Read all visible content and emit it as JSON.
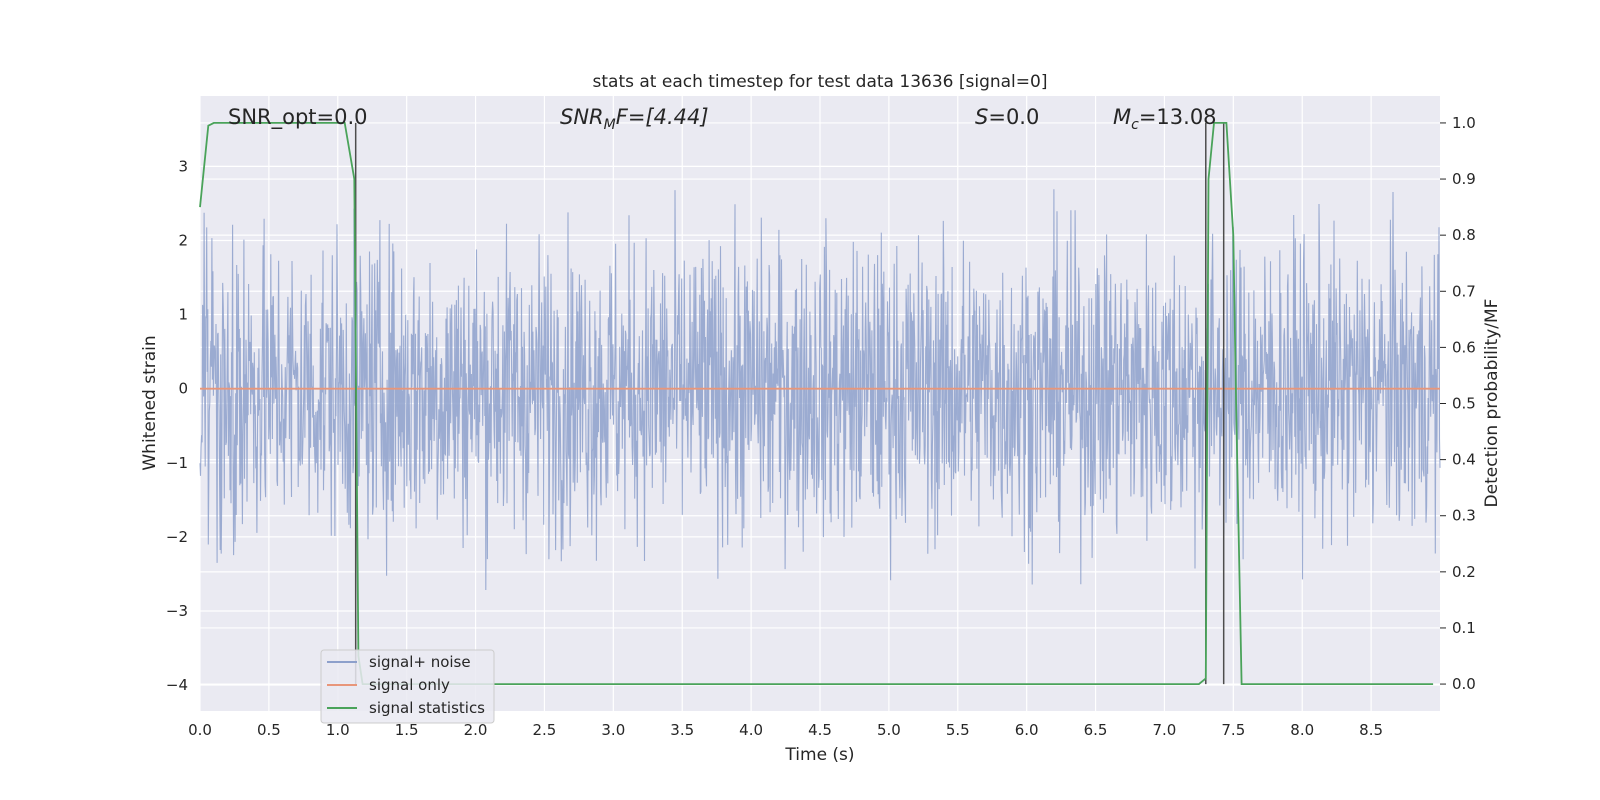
{
  "chart_data": {
    "type": "line",
    "title": "stats at each timestep for test data 13636 [signal=0]",
    "xlabel": "Time (s)",
    "ylabel": "Whitened strain",
    "ylabel_right": "Detection probability/MF",
    "xlim": [
      0.0,
      9.0
    ],
    "ylim": [
      -4.35,
      3.95
    ],
    "ylim_right": [
      -0.048,
      1.048
    ],
    "x_ticks": [
      "0.0",
      "0.5",
      "1.0",
      "1.5",
      "2.0",
      "2.5",
      "3.0",
      "3.5",
      "4.0",
      "4.5",
      "5.0",
      "5.5",
      "6.0",
      "6.5",
      "7.0",
      "7.5",
      "8.0",
      "8.5"
    ],
    "y_ticks": [
      "−4",
      "−3",
      "−2",
      "−1",
      "0",
      "1",
      "2",
      "3"
    ],
    "y_ticks_right": [
      "0.0",
      "0.1",
      "0.2",
      "0.3",
      "0.4",
      "0.5",
      "0.6",
      "0.7",
      "0.8",
      "0.9",
      "1.0"
    ],
    "grid": true,
    "legend_position": "lower-left",
    "annotations": {
      "snr_opt": "SNR_opt=0.0",
      "snr_mf_base": "SNR",
      "snr_mf_sub": "M",
      "snr_mf_rest": "F=[4.44]",
      "s_base": "S",
      "s_rest": "=0.0",
      "mc_base": "M",
      "mc_sub": "c",
      "mc_rest": "=13.08"
    },
    "vertical_lines_x": [
      1.13,
      7.3,
      7.43
    ],
    "series": [
      {
        "name": "signal+ noise",
        "axis": "left",
        "color": "#8da0cb",
        "description_values": "whitened noise, approx. Gaussian, roughly within [-4, 3.6]"
      },
      {
        "name": "signal only",
        "axis": "left",
        "color": "#e8967a",
        "x": [
          0.0,
          9.0
        ],
        "values": [
          0.0,
          0.0
        ]
      },
      {
        "name": "signal statistics",
        "axis": "right",
        "color": "#4aa35a",
        "x": [
          0.0,
          0.06,
          0.1,
          1.0,
          1.05,
          1.12,
          1.15,
          1.18,
          7.25,
          7.3,
          7.32,
          7.36,
          7.4,
          7.45,
          7.5,
          7.52,
          7.56,
          7.6,
          8.95
        ],
        "values": [
          0.85,
          0.995,
          1.0,
          1.0,
          1.0,
          0.9,
          0.05,
          0.0,
          0.0,
          0.01,
          0.9,
          1.0,
          1.0,
          1.0,
          0.8,
          0.5,
          0.0,
          0.0,
          0.0
        ]
      }
    ]
  }
}
